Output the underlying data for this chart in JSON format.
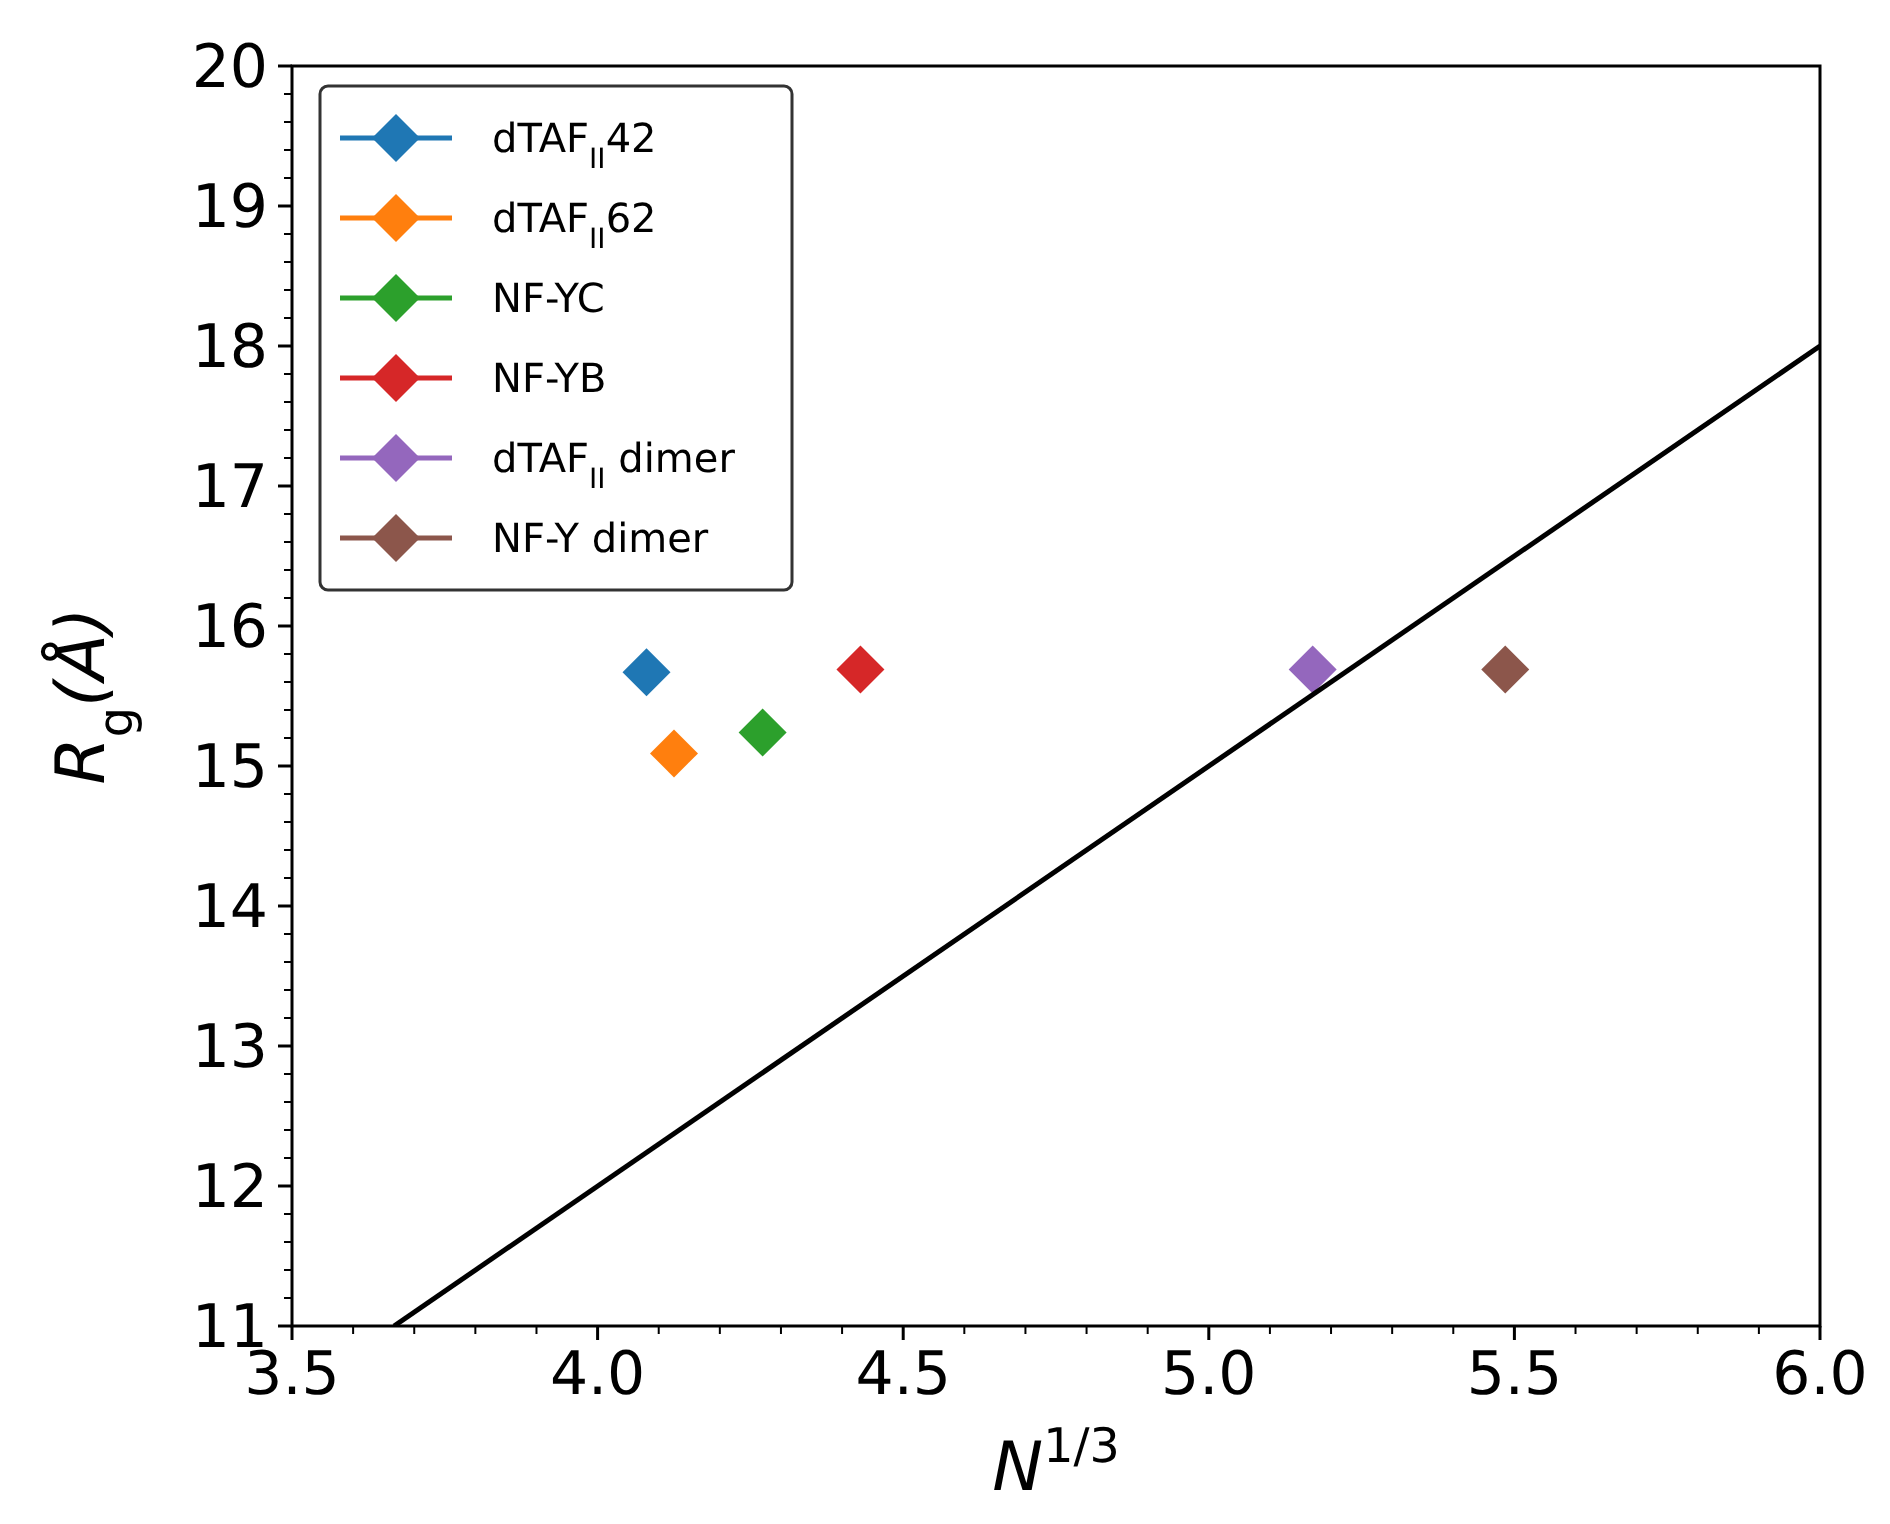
{
  "chart_data": {
    "type": "scatter",
    "xlabel": "N$^{1/3}$",
    "ylabel": "R$_{g}$(Å)",
    "xlim": [
      3.5,
      6.0
    ],
    "ylim": [
      11,
      20
    ],
    "xticks": [
      {
        "value": 3.5,
        "label": "3.5"
      },
      {
        "value": 3.6,
        "label": null
      },
      {
        "value": 3.7,
        "label": null
      },
      {
        "value": 3.8,
        "label": null
      },
      {
        "value": 3.9,
        "label": null
      },
      {
        "value": 4.0,
        "label": "4.0"
      },
      {
        "value": 4.1,
        "label": null
      },
      {
        "value": 4.2,
        "label": null
      },
      {
        "value": 4.3,
        "label": null
      },
      {
        "value": 4.4,
        "label": null
      },
      {
        "value": 4.5,
        "label": "4.5"
      },
      {
        "value": 4.6,
        "label": null
      },
      {
        "value": 4.7,
        "label": null
      },
      {
        "value": 4.8,
        "label": null
      },
      {
        "value": 4.9,
        "label": null
      },
      {
        "value": 5.0,
        "label": "5.0"
      },
      {
        "value": 5.1,
        "label": null
      },
      {
        "value": 5.2,
        "label": null
      },
      {
        "value": 5.3,
        "label": null
      },
      {
        "value": 5.4,
        "label": null
      },
      {
        "value": 5.5,
        "label": "5.5"
      },
      {
        "value": 5.6,
        "label": null
      },
      {
        "value": 5.7,
        "label": null
      },
      {
        "value": 5.8,
        "label": null
      },
      {
        "value": 5.9,
        "label": null
      },
      {
        "value": 6.0,
        "label": "6.0"
      }
    ],
    "yticks": [
      11,
      {
        "value": 11.2,
        "label": null
      },
      {
        "value": 11.4,
        "label": null
      },
      {
        "value": 11.6,
        "label": null
      },
      {
        "value": 11.8,
        "label": null
      },
      12,
      {
        "value": 12.2,
        "label": null
      },
      {
        "value": 12.4,
        "label": null
      },
      {
        "value": 12.6,
        "label": null
      },
      {
        "value": 12.8,
        "label": null
      },
      13,
      {
        "value": 13.2,
        "label": null
      },
      {
        "value": 13.4,
        "label": null
      },
      {
        "value": 13.6,
        "label": null
      },
      {
        "value": 13.8,
        "label": null
      },
      14,
      {
        "value": 14.2,
        "label": null
      },
      {
        "value": 14.4,
        "label": null
      },
      {
        "value": 14.6,
        "label": null
      },
      {
        "value": 14.8,
        "label": null
      },
      15,
      {
        "value": 15.2,
        "label": null
      },
      {
        "value": 15.4,
        "label": null
      },
      {
        "value": 15.6,
        "label": null
      },
      {
        "value": 15.8,
        "label": null
      },
      16,
      {
        "value": 16.2,
        "label": null
      },
      {
        "value": 16.4,
        "label": null
      },
      {
        "value": 16.6,
        "label": null
      },
      {
        "value": 16.8,
        "label": null
      },
      17,
      {
        "value": 17.2,
        "label": null
      },
      {
        "value": 17.4,
        "label": null
      },
      {
        "value": 17.6,
        "label": null
      },
      {
        "value": 17.8,
        "label": null
      },
      18,
      {
        "value": 18.2,
        "label": null
      },
      {
        "value": 18.4,
        "label": null
      },
      {
        "value": 18.6,
        "label": null
      },
      {
        "value": 18.8,
        "label": null
      },
      19,
      {
        "value": 19.2,
        "label": null
      },
      {
        "value": 19.4,
        "label": null
      },
      {
        "value": 19.6,
        "label": null
      },
      {
        "value": 19.8,
        "label": null
      },
      20
    ],
    "grid": false,
    "legend": "top left",
    "marker": "diamond",
    "series": [
      {
        "name": "dTAF$_{II}$42",
        "color": "#1f77b4",
        "x": [
          4.08
        ],
        "values": [
          15.67
        ]
      },
      {
        "name": "dTAF$_{II}$62",
        "color": "#ff7f0e",
        "x": [
          4.125
        ],
        "values": [
          15.09
        ]
      },
      {
        "name": "NF-YC",
        "color": "#2ca02c",
        "x": [
          4.27
        ],
        "values": [
          15.24
        ]
      },
      {
        "name": "NF-YB",
        "color": "#d62728",
        "x": [
          4.43
        ],
        "values": [
          15.69
        ]
      },
      {
        "name": "dTAF$_{II}$ dimer",
        "color": "#9467bd",
        "x": [
          5.17
        ],
        "values": [
          15.69
        ]
      },
      {
        "name": "NF-Y dimer",
        "color": "#8c564b",
        "x": [
          5.485
        ],
        "values": [
          15.69
        ]
      },
      {
        "type": "line",
        "color": "#000000",
        "marker": "none",
        "x": [
          3.667,
          6.0
        ],
        "values": [
          11,
          18
        ]
      }
    ]
  }
}
